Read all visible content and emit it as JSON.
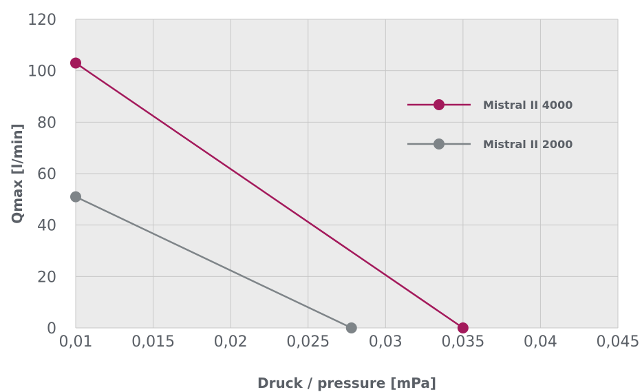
{
  "chart_data": {
    "type": "line",
    "xlabel": "Druck / pressure [mPa]",
    "ylabel": "Qmax  [l/min]",
    "xlim": [
      0.01,
      0.045
    ],
    "ylim": [
      0,
      120
    ],
    "x_ticks": [
      "0,01",
      "0,015",
      "0,02",
      "0,025",
      "0,03",
      "0,035",
      "0,04",
      "0,045"
    ],
    "y_ticks": [
      "0",
      "20",
      "40",
      "60",
      "80",
      "100",
      "120"
    ],
    "grid": true,
    "legend_position": "right",
    "series": [
      {
        "name": "Mistral II 4000",
        "color": "#a3195b",
        "x": [
          0.01,
          0.035
        ],
        "y": [
          103,
          0
        ]
      },
      {
        "name": "Mistral II 2000",
        "color": "#7e8488",
        "x": [
          0.01,
          0.0278
        ],
        "y": [
          51,
          0
        ]
      }
    ]
  }
}
